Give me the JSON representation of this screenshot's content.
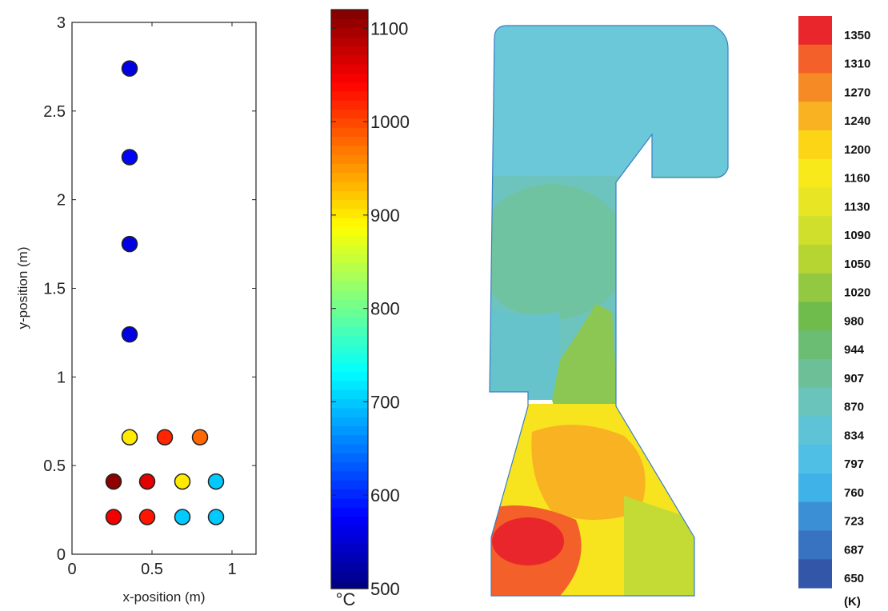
{
  "chart_data": [
    {
      "type": "scatter",
      "title": "",
      "xlabel": "x-position (m)",
      "ylabel": "y-position (m)",
      "xlim": [
        0,
        1.15
      ],
      "ylim": [
        0,
        3
      ],
      "xticks": [
        "0",
        "0.5",
        "1"
      ],
      "yticks": [
        "0",
        "0.5",
        "1",
        "1.5",
        "2",
        "2.5",
        "3"
      ],
      "grid": false,
      "points": [
        {
          "x": 0.36,
          "y": 2.74,
          "c": 560
        },
        {
          "x": 0.36,
          "y": 2.24,
          "c": 580
        },
        {
          "x": 0.36,
          "y": 1.75,
          "c": 560
        },
        {
          "x": 0.36,
          "y": 1.24,
          "c": 560
        },
        {
          "x": 0.36,
          "y": 0.66,
          "c": 900
        },
        {
          "x": 0.58,
          "y": 0.66,
          "c": 1020
        },
        {
          "x": 0.8,
          "y": 0.66,
          "c": 980
        },
        {
          "x": 0.26,
          "y": 0.41,
          "c": 1110
        },
        {
          "x": 0.47,
          "y": 0.41,
          "c": 1060
        },
        {
          "x": 0.69,
          "y": 0.41,
          "c": 900
        },
        {
          "x": 0.9,
          "y": 0.41,
          "c": 700
        },
        {
          "x": 0.26,
          "y": 0.21,
          "c": 1050
        },
        {
          "x": 0.47,
          "y": 0.21,
          "c": 1030
        },
        {
          "x": 0.69,
          "y": 0.21,
          "c": 700
        },
        {
          "x": 0.9,
          "y": 0.21,
          "c": 700
        }
      ],
      "colorbar": {
        "min": 500,
        "max": 1120,
        "ticks": [
          "500",
          "600",
          "700",
          "800",
          "900",
          "1000",
          "1100"
        ],
        "unit": "°C",
        "colormap": "jet"
      }
    },
    {
      "type": "heatmap",
      "title": "",
      "legend_unit": "(K)",
      "legend_levels": [
        {
          "label": "1350",
          "color": "#e8262b"
        },
        {
          "label": "1310",
          "color": "#f3602a"
        },
        {
          "label": "1270",
          "color": "#f68b26"
        },
        {
          "label": "1240",
          "color": "#f9b222"
        },
        {
          "label": "1200",
          "color": "#fbd516"
        },
        {
          "label": "1160",
          "color": "#f8ea1a"
        },
        {
          "label": "1130",
          "color": "#e7e524"
        },
        {
          "label": "1090",
          "color": "#cfdf2c"
        },
        {
          "label": "1050",
          "color": "#b6d532"
        },
        {
          "label": "1020",
          "color": "#93c841"
        },
        {
          "label": "980",
          "color": "#6fbb4c"
        },
        {
          "label": "944",
          "color": "#6cbd74"
        },
        {
          "label": "907",
          "color": "#6cbf96"
        },
        {
          "label": "870",
          "color": "#6ac4bb"
        },
        {
          "label": "834",
          "color": "#5ec3d6"
        },
        {
          "label": "797",
          "color": "#4fbfe6"
        },
        {
          "label": "760",
          "color": "#3fb2e8"
        },
        {
          "label": "723",
          "color": "#3b8fd4"
        },
        {
          "label": "687",
          "color": "#3873c2"
        },
        {
          "label": "650",
          "color": "#3356a9"
        }
      ]
    }
  ]
}
